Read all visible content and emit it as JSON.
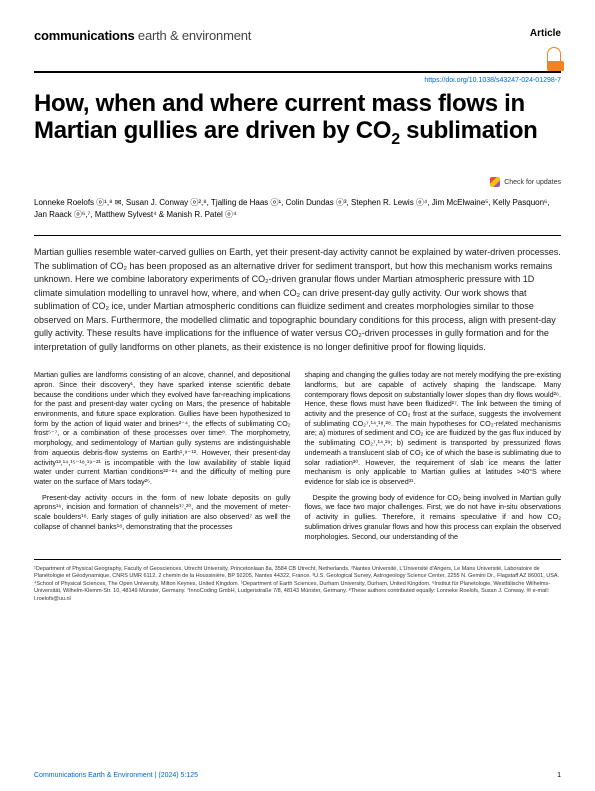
{
  "journal": {
    "strong": "communications",
    "light": " earth & environment"
  },
  "article_label": "Article",
  "doi": "https://doi.org/10.1038/s43247-024-01298-7",
  "title_pre": "How, when and where current mass flows in Martian gullies are driven by CO",
  "title_sub": "2",
  "title_post": " sublimation",
  "check_updates": "Check for updates",
  "authors_html": "Lonneke Roelofs ⓞ¹,⁸ ✉, Susan J. Conway ⓞ²,⁸, Tjalling de Haas ⓞ¹, Colin Dundas ⓞ³, Stephen R. Lewis ⓞ⁴, Jim McElwaine⁵, Kelly Pasquon⁶, Jan Raack ⓞ⁶,⁷, Matthew Sylvest⁴ & Manish R. Patel ⓞ⁴",
  "abstract": "Martian gullies resemble water-carved gullies on Earth, yet their present-day activity cannot be explained by water-driven processes. The sublimation of CO₂ has been proposed as an alternative driver for sediment transport, but how this mechanism works remains unknown. Here we combine laboratory experiments of CO₂-driven granular flows under Martian atmospheric pressure with 1D climate simulation modelling to unravel how, where, and when CO₂ can drive present-day gully activity. Our work shows that sublimation of CO₂ ice, under Martian atmospheric conditions can fluidize sediment and creates morphologies similar to those observed on Mars. Furthermore, the modelled climatic and topographic boundary conditions for this process, align with present-day gully activity. These results have implications for the influence of water versus CO₂-driven processes in gully formation and for the interpretation of gully landforms on other planets, as their existence is no longer definitive proof for flowing liquids.",
  "col1_p1": "Martian gullies are landforms consisting of an alcove, channel, and depositional apron. Since their discovery¹, they have sparked intense scientific debate because the conditions under which they evolved have far-reaching implications for the past and present-day water cycling on Mars, the presence of habitable environments, and future space exploration. Gullies have been hypothesized to form by the action of liquid water and brines²⁻⁴, the effects of sublimating CO₂ frost⁵⁻⁷, or a combination of these processes over time⁸. The morphometry, morphology, and sedimentology of Martian gully systems are indistinguishable from aqueous debris-flow systems on Earth¹,⁹⁻¹². However, their present-day activity¹³,¹⁴,¹⁵⁻¹⁸,¹⁹⁻²¹ is incompatible with the low availability of stable liquid water under current Martian conditions²²⁻²⁴ and the difficulty of melting pure water on the surface of Mars today²⁵.",
  "col1_p2": "Present-day activity occurs in the form of new lobate deposits on gully aprons¹⁶, incision and formation of channels¹⁷,²⁰, and the movement of meter-scale boulders¹⁸. Early stages of gully initiation are also observed⁷ as well the collapse of channel banks¹⁸, demonstrating that the processes",
  "col2_p1": "shaping and changing the gullies today are not merely modifying the pre-existing landforms, but are capable of actively shaping the landscape. Many contemporary flows deposit on substantially lower slopes than dry flows would²⁶. Hence, these flows must have been fluidized²⁷. The link between the timing of activity and the presence of CO₂ frost at the surface, suggests the involvement of sublimating CO₂⁷,¹⁴,¹⁸,²⁸. The main hypotheses for CO₂-related mechanisms are; a) mixtures of sediment and CO₂ ice are fluidized by the gas flux induced by the sublimating CO₂⁷,¹⁴,²⁹; b) sediment is transported by pressurized flows underneath a translucent slab of CO₂ ice of which the base is sublimating due to solar radiation³⁰. However, the requirement of slab ice means the latter mechanism is only applicable to Martian gullies at latitudes >40°S where evidence for slab ice is observed³¹.",
  "col2_p2": "Despite the growing body of evidence for CO₂ being involved in Martian gully flows, we face two major challenges. First, we do not have in-situ observations of activity in gullies. Therefore, it remains speculative if and how CO₂ sublimation drives granular flows and how this process can explain the observed morphologies. Second, our understanding of the",
  "affiliations": "¹Department of Physical Geography, Faculty of Geosciences, Utrecht University, Princetonlaan 8a, 3584 CB Utrecht, Netherlands. ²Nantes Université, L'Université d'Angers, Le Mans Université, Laboratoire de Planétologie et Géodynamique, CNRS UMR 6112, 2 chemin de la Houssinière, BP 92205, Nantes 44322, France. ³U.S. Geological Survey, Astrogeology Science Center, 2255 N. Gemini Dr., Flagstaff AZ 86001, USA. ⁴School of Physical Sciences, The Open University, Milton Keynes, United Kingdom. ⁵Department of Earth Sciences, Durham University, Durham, United Kingdom. ⁶Institut für Planetologie, Westfälische Wilhelms-Universität, Wilhelm-Klemm-Str. 10, 48149 Münster, Germany. ⁷InnoCoding GmbH, Ludgeristraße 7/8, 48143 Münster, Germany. ⁸These authors contributed equally: Lonneke Roelofs, Susan J. Conway. ✉ e-mail: l.roelofs@uu.nl",
  "footer_cite": "Communications Earth & Environment |           (2024) 5:125",
  "footer_page": "1"
}
